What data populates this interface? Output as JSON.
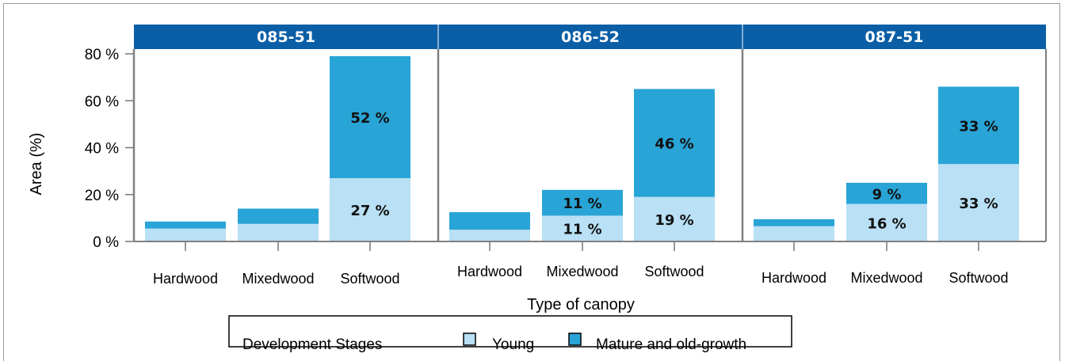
{
  "chart_data": {
    "type": "bar",
    "stacked": true,
    "ylabel": "Area (%)",
    "xlabel": "Type of canopy",
    "ylim": [
      0,
      80
    ],
    "yticks": [
      0,
      20,
      40,
      60,
      80
    ],
    "ytick_labels": [
      "0 %",
      "20 %",
      "40 %",
      "60 %",
      "80 %"
    ],
    "grid": false,
    "categories": [
      "Hardwood",
      "Mixedwood",
      "Softwood"
    ],
    "panels": [
      {
        "title": "085-51",
        "series": [
          {
            "name": "Young",
            "values": [
              5.5,
              7.5,
              27
            ],
            "labels": [
              "",
              "",
              "27 %"
            ]
          },
          {
            "name": "Mature and old-growth",
            "values": [
              3,
              6.5,
              52
            ],
            "labels": [
              "",
              "",
              "52 %"
            ]
          }
        ]
      },
      {
        "title": "086-52",
        "series": [
          {
            "name": "Young",
            "values": [
              5,
              11,
              19
            ],
            "labels": [
              "",
              "11 %",
              "19 %"
            ]
          },
          {
            "name": "Mature and old-growth",
            "values": [
              7.5,
              11,
              46
            ],
            "labels": [
              "",
              "11 %",
              "46 %"
            ]
          }
        ]
      },
      {
        "title": "087-51",
        "series": [
          {
            "name": "Young",
            "values": [
              6.5,
              16,
              33
            ],
            "labels": [
              "",
              "16 %",
              "33 %"
            ]
          },
          {
            "name": "Mature and old-growth",
            "values": [
              3,
              9,
              33
            ],
            "labels": [
              "",
              "9 %",
              "33 %"
            ]
          }
        ]
      }
    ],
    "legend": {
      "title": "Development Stages",
      "position": "bottom",
      "entries": [
        {
          "label": "Young",
          "color": "#b9e0f5"
        },
        {
          "label": "Mature and old-growth",
          "color": "#29a4d6"
        }
      ]
    },
    "colors": {
      "young": "#b9e0f5",
      "mature": "#29a4d6",
      "header": "#0a5ea6"
    }
  }
}
